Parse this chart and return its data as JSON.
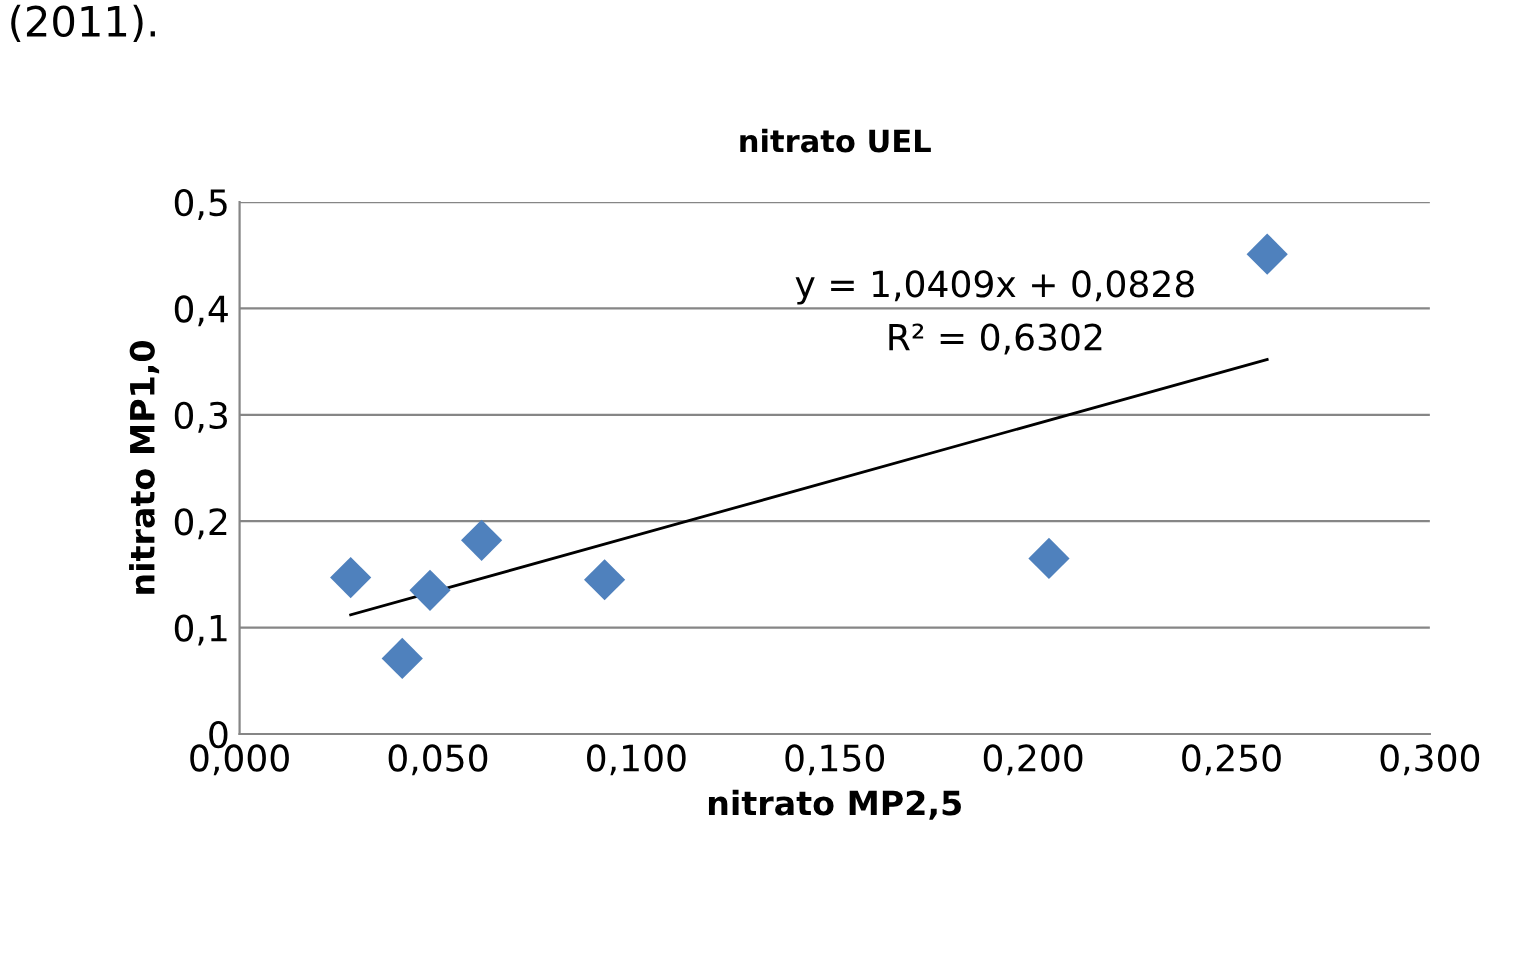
{
  "chart_data": {
    "type": "scatter",
    "title": "nitrato UEL",
    "xlabel": "nitrato MP2,5",
    "ylabel": "nitrato MP1,0",
    "xlim": [
      0,
      0.3
    ],
    "xticks": [
      {
        "value": 0,
        "label": "0,000"
      },
      {
        "value": 0.05,
        "label": "0,050"
      },
      {
        "value": 0.1,
        "label": "0,100"
      },
      {
        "value": 0.15,
        "label": "0,150"
      },
      {
        "value": 0.2,
        "label": "0,200"
      },
      {
        "value": 0.25,
        "label": "0,250"
      },
      {
        "value": 0.3,
        "label": "0,300"
      }
    ],
    "ylim": [
      0,
      0.5
    ],
    "yticks": [
      {
        "value": 0,
        "label": "0"
      },
      {
        "value": 0.1,
        "label": "0,1"
      },
      {
        "value": 0.2,
        "label": "0,2"
      },
      {
        "value": 0.3,
        "label": "0,3"
      },
      {
        "value": 0.4,
        "label": "0,4"
      },
      {
        "value": 0.5,
        "label": "0,5"
      }
    ],
    "grid": "y",
    "legend": false,
    "series": [
      {
        "color": "#4f81bd",
        "marker": "diamond",
        "x": [
          0.028,
          0.041,
          0.048,
          0.061,
          0.092,
          0.204,
          0.259
        ],
        "values": [
          0.147,
          0.071,
          0.135,
          0.182,
          0.145,
          0.165,
          0.451
        ]
      },
      {
        "type": "line",
        "color": "#000000",
        "marker": "none",
        "line_style": "solid",
        "x": [
          0.028,
          0.259
        ],
        "values": [
          0.112,
          0.352
        ]
      }
    ],
    "annotations": [
      "y = 1,0409x + 0,0828",
      "R² = 0,6302",
      "(2011)."
    ]
  }
}
